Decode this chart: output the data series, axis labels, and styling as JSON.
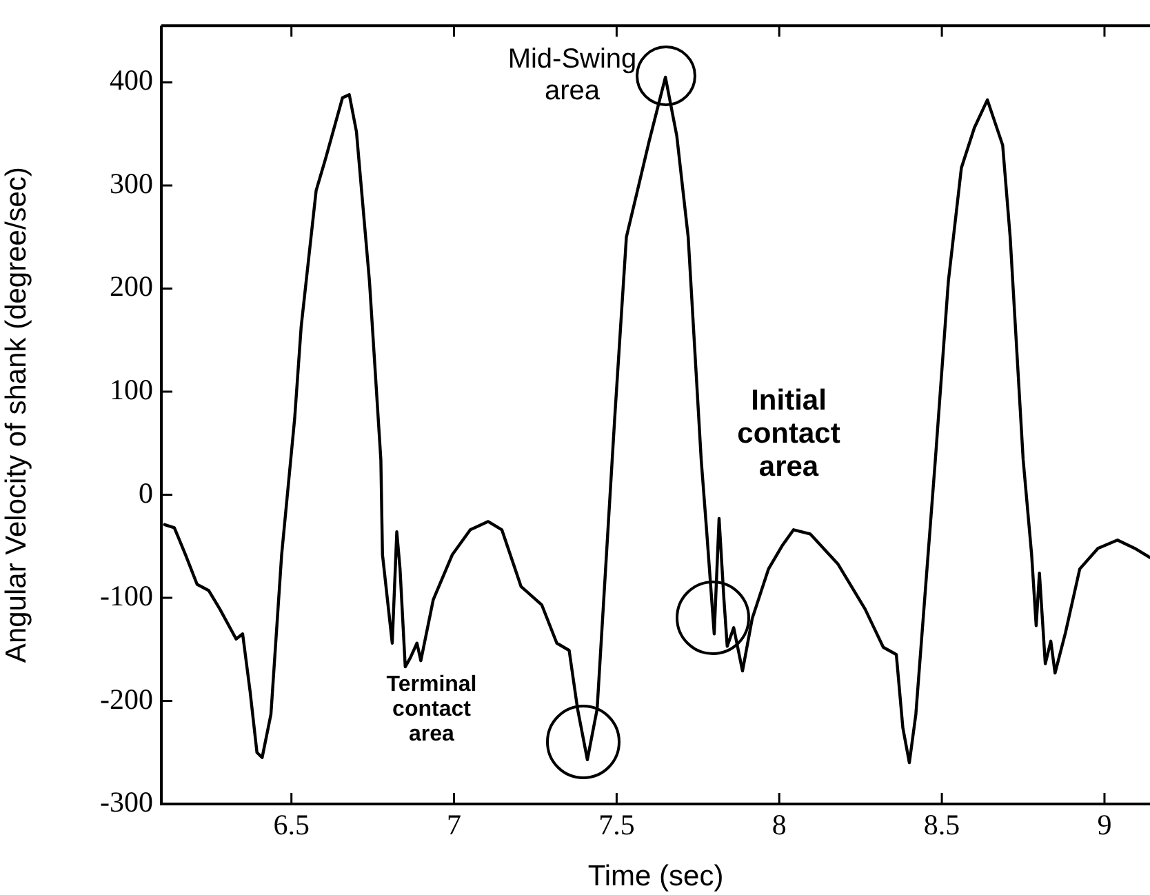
{
  "chart_data": {
    "type": "line",
    "xlabel": "Time (sec)",
    "ylabel": "Angular Velocity of shank (degree/sec)",
    "xlim": [
      6.1,
      9.14
    ],
    "xticks": [
      6.5,
      7,
      7.5,
      8,
      8.5,
      9
    ],
    "ylim": [
      -300,
      455
    ],
    "yticks": [
      -300,
      -200,
      -100,
      0,
      100,
      200,
      300,
      400
    ],
    "grid": false,
    "legend": false,
    "marker": "none",
    "line_style": "solid",
    "series": [
      {
        "color": "#000000",
        "x": [
          6.11,
          6.14,
          6.174,
          6.21,
          6.246,
          6.28,
          6.33,
          6.35,
          6.373,
          6.394,
          6.41,
          6.437,
          6.47,
          6.51,
          6.53,
          6.576,
          6.605,
          6.657,
          6.678,
          6.7,
          6.74,
          6.775,
          6.78,
          6.81,
          6.824,
          6.834,
          6.85,
          6.866,
          6.886,
          6.898,
          6.936,
          6.995,
          7.05,
          7.105,
          7.147,
          7.206,
          7.27,
          7.316,
          7.354,
          7.38,
          7.41,
          7.44,
          7.494,
          7.53,
          7.57,
          7.6,
          7.65,
          7.685,
          7.72,
          7.76,
          7.777,
          7.8,
          7.815,
          7.83,
          7.84,
          7.86,
          7.887,
          7.917,
          7.967,
          8.01,
          8.044,
          8.095,
          8.18,
          8.264,
          8.32,
          8.36,
          8.38,
          8.4,
          8.42,
          8.48,
          8.52,
          8.56,
          8.6,
          8.64,
          8.687,
          8.71,
          8.75,
          8.776,
          8.79,
          8.8,
          8.818,
          8.835,
          8.848,
          8.88,
          8.924,
          8.98,
          9.04,
          9.093,
          9.14
        ],
        "values": [
          -29,
          -32,
          -58,
          -87,
          -93,
          -111,
          -140,
          -135,
          -191,
          -250,
          -255,
          -213,
          -58,
          74,
          163,
          295,
          326,
          385,
          388,
          352,
          207,
          34,
          -58,
          -144,
          -36,
          -72,
          -167,
          -158,
          -144,
          -161,
          -102,
          -58,
          -34,
          -26,
          -34,
          -89,
          -107,
          -144,
          -151,
          -208,
          -257,
          -208,
          74,
          250,
          303,
          343,
          405,
          348,
          250,
          34,
          -36,
          -135,
          -23,
          -102,
          -147,
          -129,
          -171,
          -120,
          -72,
          -49,
          -34,
          -38,
          -67,
          -111,
          -148,
          -155,
          -226,
          -260,
          -213,
          34,
          207,
          317,
          356,
          383,
          339,
          250,
          34,
          -58,
          -127,
          -76,
          -164,
          -142,
          -173,
          -134,
          -72,
          -52,
          -44,
          -52,
          -61
        ]
      }
    ],
    "annotations": [
      "Mid-Swing area",
      "Initial contact area",
      "Terminal contact area"
    ]
  }
}
